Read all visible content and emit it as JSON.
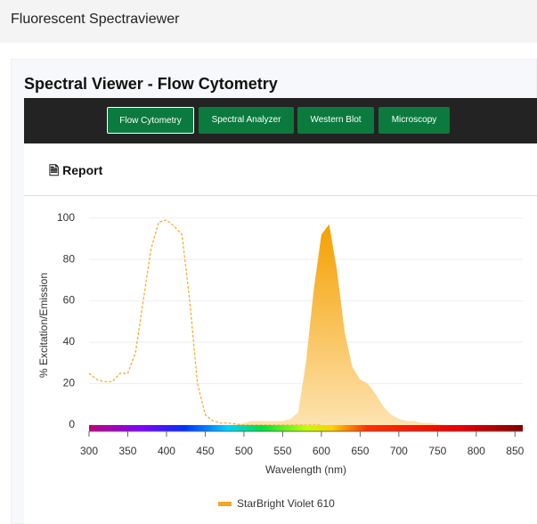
{
  "header": {
    "title": "Fluorescent Spectraviewer"
  },
  "panel": {
    "title": "Spectral Viewer - Flow Cytometry",
    "tabs": [
      "Flow Cytometry",
      "Spectral Analyzer",
      "Western Blot",
      "Microscopy"
    ],
    "report": "Report"
  },
  "chart_data": {
    "type": "line",
    "xlabel": "Wavelength (nm)",
    "ylabel": "% Excitation/Emission",
    "x": [
      300,
      310,
      320,
      330,
      340,
      350,
      360,
      370,
      380,
      390,
      400,
      410,
      420,
      430,
      440,
      450,
      460,
      470,
      480,
      490,
      500,
      510,
      520,
      530,
      540,
      550,
      560,
      570,
      580,
      590,
      600,
      610,
      620,
      630,
      640,
      650,
      660,
      670,
      680,
      690,
      700,
      710,
      720,
      730,
      740,
      750,
      760,
      770,
      780,
      790,
      800,
      810,
      820,
      830,
      840,
      850
    ],
    "series": [
      {
        "name": "StarBright Violet 610",
        "color": "#f5a623",
        "excitation": [
          25,
          22,
          21,
          21,
          25,
          25,
          35,
          60,
          85,
          98,
          99,
          96,
          92,
          60,
          20,
          5,
          2,
          1,
          1,
          0.5,
          0,
          0,
          0,
          0,
          0,
          0,
          0,
          0,
          0,
          0,
          0,
          null,
          null,
          null,
          null,
          null,
          null,
          null,
          null,
          null,
          null,
          null,
          null,
          null,
          null,
          null,
          null,
          null,
          null,
          null,
          null,
          null,
          null,
          null,
          null,
          null
        ],
        "emission": [
          0,
          0,
          0,
          0,
          0,
          0,
          0,
          0,
          0,
          0,
          0,
          0,
          0,
          0,
          0,
          0,
          0,
          0,
          0,
          0,
          1,
          2,
          2,
          2,
          2,
          2,
          3,
          6,
          30,
          65,
          92,
          97,
          75,
          45,
          28,
          22,
          20,
          15,
          9,
          5,
          3,
          2,
          2,
          1,
          1,
          0.5,
          0,
          0,
          0,
          0,
          0,
          0,
          0,
          0,
          0,
          0
        ]
      }
    ],
    "xlim": [
      300,
      860
    ],
    "ylim": [
      0,
      105
    ],
    "xticks": [
      300,
      350,
      400,
      450,
      500,
      550,
      600,
      650,
      700,
      750,
      800,
      850
    ],
    "yticks": [
      0,
      20,
      40,
      60,
      80,
      100
    ],
    "grid": true,
    "legend": "bottom"
  }
}
